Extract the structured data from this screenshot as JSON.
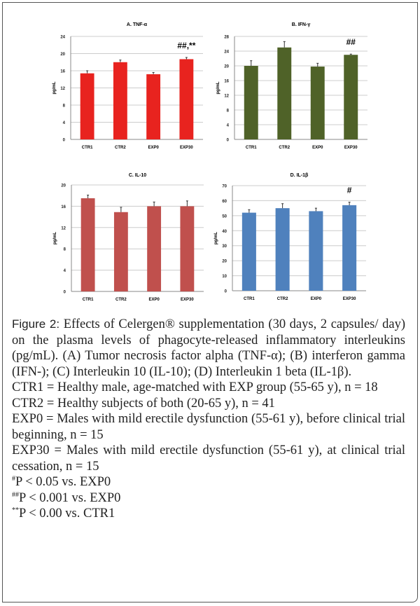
{
  "chart_data": [
    {
      "type": "bar",
      "title": "A. TNF-α",
      "ylabel": "pg/mL",
      "categories": [
        "CTR1",
        "CTR2",
        "EXP0",
        "EXP30"
      ],
      "values": [
        15.4,
        18.0,
        15.2,
        18.7
      ],
      "errors": [
        0.6,
        0.5,
        0.4,
        0.4
      ],
      "ylim": [
        0,
        24
      ],
      "yticks": [
        0,
        4,
        8,
        12,
        16,
        20,
        24
      ],
      "annotations": [
        "",
        "",
        "",
        "##,**"
      ],
      "color": "#e8231f",
      "grid": true
    },
    {
      "type": "bar",
      "title": "B. IFN-γ",
      "ylabel": "pg/mL",
      "categories": [
        "CTR1",
        "CTR2",
        "EXP0",
        "EXP30"
      ],
      "values": [
        20.0,
        25.0,
        19.8,
        23.0
      ],
      "errors": [
        1.4,
        1.6,
        0.9,
        0.2
      ],
      "ylim": [
        0,
        28
      ],
      "yticks": [
        0,
        4,
        8,
        12,
        16,
        20,
        24,
        28
      ],
      "annotations": [
        "",
        "",
        "",
        "##"
      ],
      "color": "#4f6228",
      "grid": true
    },
    {
      "type": "bar",
      "title": "C. IL-10",
      "ylabel": "pg/mL",
      "categories": [
        "CTR1",
        "CTR2",
        "EXP0",
        "EXP30"
      ],
      "values": [
        17.5,
        14.9,
        16.0,
        16.0
      ],
      "errors": [
        0.6,
        0.9,
        0.8,
        1.0
      ],
      "ylim": [
        0,
        20
      ],
      "yticks": [
        0,
        4,
        8,
        12,
        16,
        20
      ],
      "annotations": [
        "",
        "",
        "",
        ""
      ],
      "color": "#c0504d",
      "grid": true
    },
    {
      "type": "bar",
      "title": "D. IL-1β",
      "ylabel": "pg/mL",
      "categories": [
        "CTR1",
        "CTR2",
        "EXP0",
        "EXP30"
      ],
      "values": [
        52,
        55,
        53,
        57
      ],
      "errors": [
        2,
        3,
        2,
        2
      ],
      "ylim": [
        0,
        70
      ],
      "yticks": [
        0,
        10,
        20,
        30,
        40,
        50,
        60,
        70
      ],
      "annotations": [
        "",
        "",
        "",
        "#"
      ],
      "color": "#4f81bd",
      "grid": true
    }
  ],
  "caption": {
    "label": "Figure 2:",
    "text": "Effects of Celergen® supplementation (30 days, 2 capsules/ day) on the plasma levels of phagocyte-released inflammatory interleukins (pg/mL). (A) Tumor necrosis factor alpha (TNF-α); (B) interferon gamma (IFN-); (C) Interleukin 10 (IL-10); (D) Interleukin 1 beta (IL-1β).",
    "ctr1": "CTR1 = Healthy male, age-matched with EXP group (55-65 y), n = 18",
    "ctr2": "CTR2 = Healthy subjects of both (20-65 y), n = 41",
    "exp0": "EXP0 = Males with mild erectile dysfunction (55-61 y), before clinical trial beginning, n = 15",
    "exp30": "EXP30 = Males with mild erectile dysfunction (55-61 y), at clinical trial cessation, n = 15",
    "note1_mark": "#",
    "note1": "P < 0.05 vs. EXP0",
    "note2_mark": "##",
    "note2": "P < 0.001 vs. EXP0",
    "note3_mark": "**",
    "note3": "P < 0.00 vs. CTR1"
  }
}
